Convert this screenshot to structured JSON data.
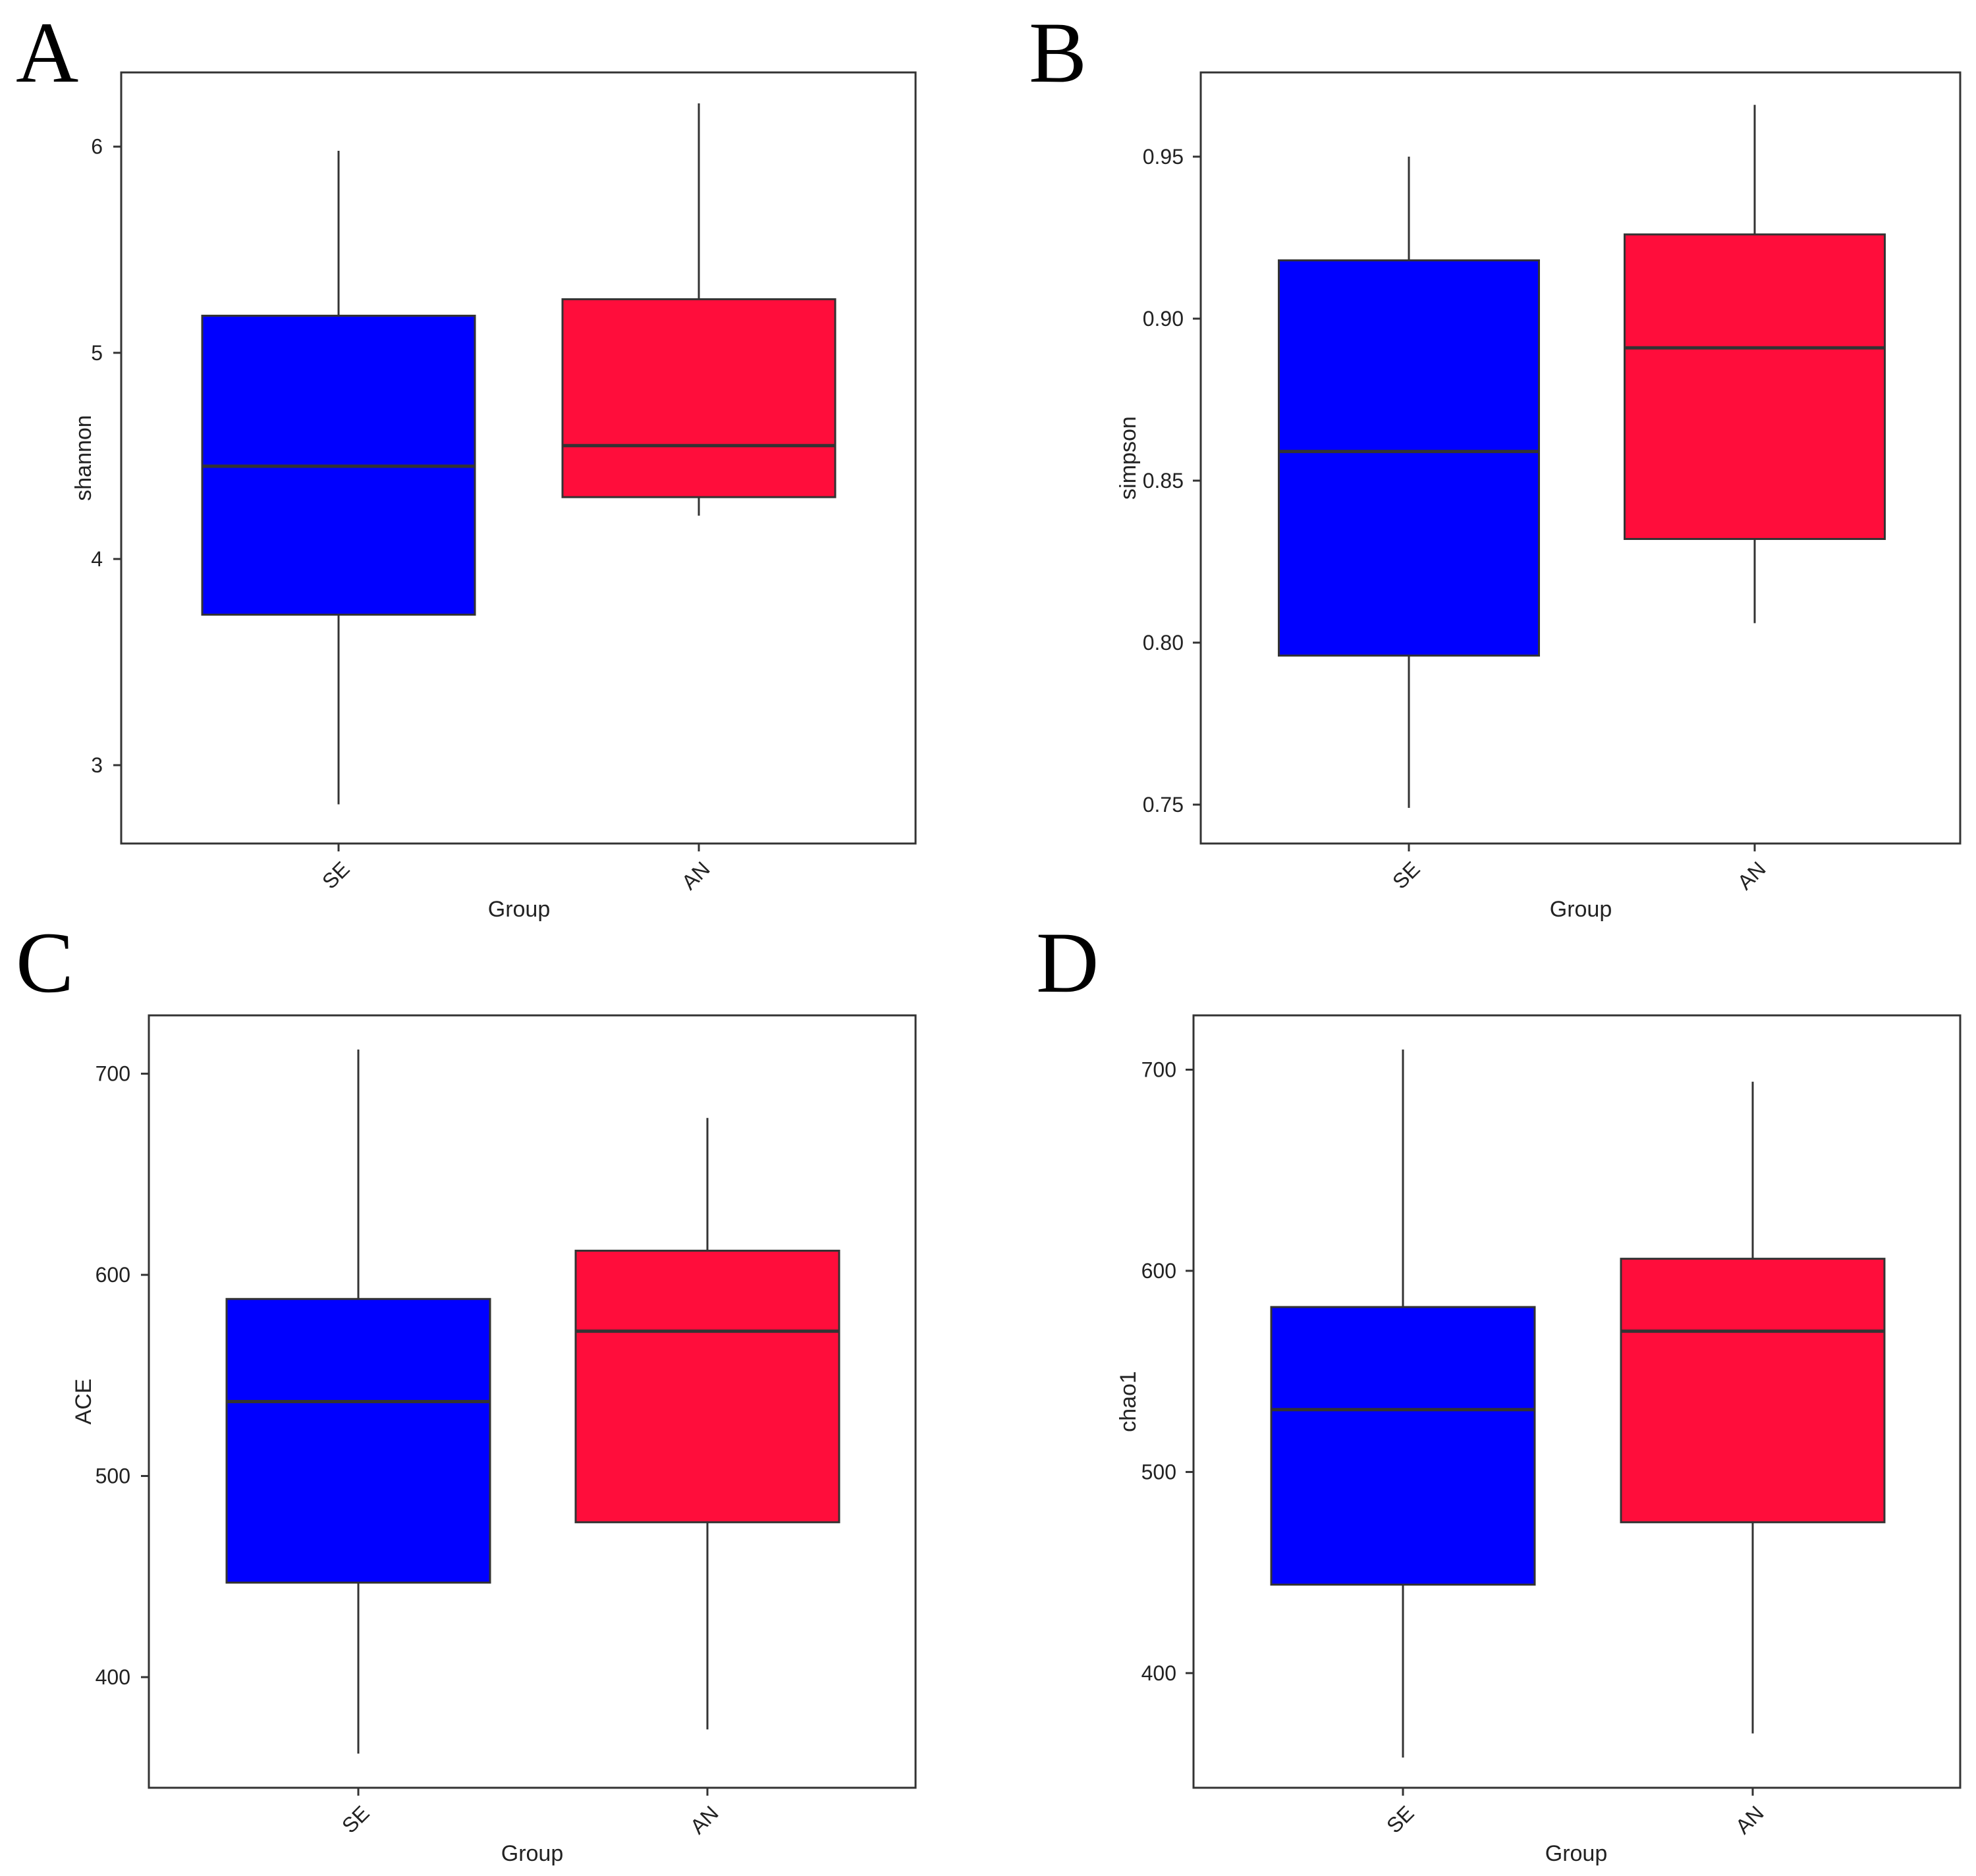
{
  "chart_data": [
    {
      "panel": "A",
      "type": "boxplot",
      "title": "",
      "xlabel": "Group",
      "ylabel": "shannon",
      "ylim": [
        2.62,
        6.36
      ],
      "yticks": [
        3,
        4,
        5,
        6
      ],
      "ytick_labels": [
        "3",
        "4",
        "5",
        "6"
      ],
      "categories": [
        "SE",
        "AN"
      ],
      "series": [
        {
          "name": "SE",
          "color": "#0000FF",
          "whisker_low": 2.81,
          "q1": 3.73,
          "median": 4.45,
          "q3": 5.18,
          "whisker_high": 5.98
        },
        {
          "name": "AN",
          "color": "#FF0D3B",
          "whisker_low": 4.21,
          "q1": 4.3,
          "median": 4.55,
          "q3": 5.26,
          "whisker_high": 6.21
        }
      ]
    },
    {
      "panel": "B",
      "type": "boxplot",
      "title": "",
      "xlabel": "Group",
      "ylabel": "simpson",
      "ylim": [
        0.738,
        0.976
      ],
      "yticks": [
        0.75,
        0.8,
        0.85,
        0.9,
        0.95
      ],
      "ytick_labels": [
        "0.75",
        "0.80",
        "0.85",
        "0.90",
        "0.95"
      ],
      "categories": [
        "SE",
        "AN"
      ],
      "series": [
        {
          "name": "SE",
          "color": "#0000FF",
          "whisker_low": 0.749,
          "q1": 0.796,
          "median": 0.859,
          "q3": 0.918,
          "whisker_high": 0.95
        },
        {
          "name": "AN",
          "color": "#FF0D3B",
          "whisker_low": 0.806,
          "q1": 0.832,
          "median": 0.891,
          "q3": 0.926,
          "whisker_high": 0.966
        }
      ]
    },
    {
      "panel": "C",
      "type": "boxplot",
      "title": "",
      "xlabel": "Group",
      "ylabel": "ACE",
      "ylim": [
        345,
        729
      ],
      "yticks": [
        400,
        500,
        600,
        700
      ],
      "ytick_labels": [
        "400",
        "500",
        "600",
        "700"
      ],
      "categories": [
        "SE",
        "AN"
      ],
      "series": [
        {
          "name": "SE",
          "color": "#0000FF",
          "whisker_low": 362,
          "q1": 447,
          "median": 537,
          "q3": 588,
          "whisker_high": 712
        },
        {
          "name": "AN",
          "color": "#FF0D3B",
          "whisker_low": 374,
          "q1": 477,
          "median": 572,
          "q3": 612,
          "whisker_high": 678
        }
      ]
    },
    {
      "panel": "D",
      "type": "boxplot",
      "title": "",
      "xlabel": "Group",
      "ylabel": "chao1",
      "ylim": [
        343,
        727
      ],
      "yticks": [
        400,
        500,
        600,
        700
      ],
      "ytick_labels": [
        "400",
        "500",
        "600",
        "700"
      ],
      "categories": [
        "SE",
        "AN"
      ],
      "series": [
        {
          "name": "SE",
          "color": "#0000FF",
          "whisker_low": 358,
          "q1": 444,
          "median": 531,
          "q3": 582,
          "whisker_high": 710
        },
        {
          "name": "AN",
          "color": "#FF0D3B",
          "whisker_low": 370,
          "q1": 475,
          "median": 570,
          "q3": 606,
          "whisker_high": 694
        }
      ]
    }
  ]
}
